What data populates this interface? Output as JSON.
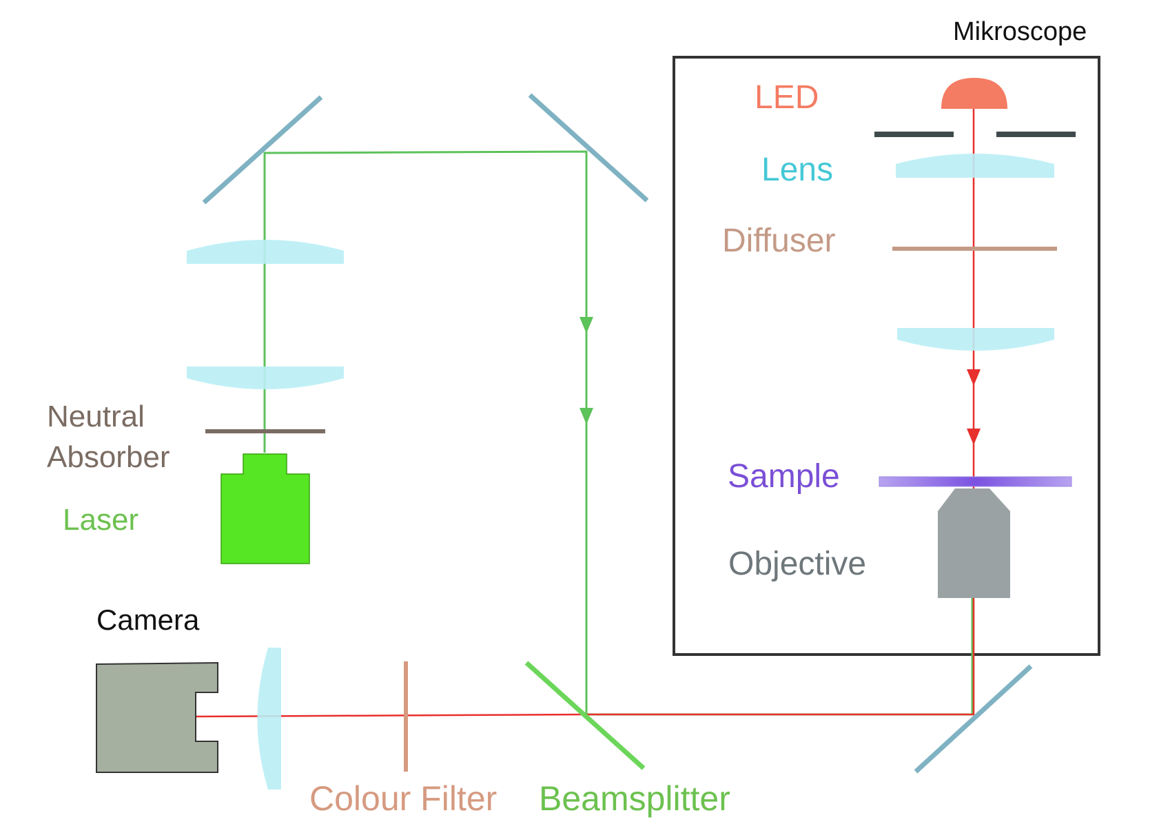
{
  "labels": {
    "microscope": "Mikroscope",
    "led": "LED",
    "lens": "Lens",
    "diffuser": "Diffuser",
    "sample": "Sample",
    "objective": "Objective",
    "neutral_absorber_line1": "Neutral",
    "neutral_absorber_line2": "Absorber",
    "laser": "Laser",
    "camera": "Camera",
    "colour_filter": "Colour Filter",
    "beamsplitter": "Beamsplitter"
  },
  "colors": {
    "led": "#f47c63",
    "lens_label": "#45c8d6",
    "lens_fill": "#b9eef5",
    "diffuser": "#c49a86",
    "sample": "#7a4fd6",
    "objective": "#9aa2a4",
    "objective_label": "#6e777b",
    "neutral_absorber": "#7b6c63",
    "laser_label": "#6cc14f",
    "laser_body": "#56e624",
    "laser_beam": "#5cc25a",
    "red_beam": "#e8302c",
    "mirror": "#7fb2c2",
    "beamsplitter": "#6cd65a",
    "camera_body": "#a6b0a0",
    "frame": "#333333",
    "aperture": "#3f4a4c",
    "colour_filter": "#d69a80"
  }
}
